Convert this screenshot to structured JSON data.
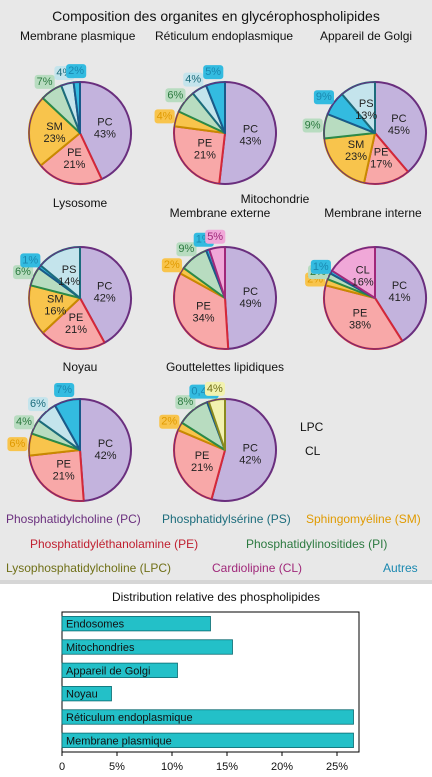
{
  "top_title": "Composition des organites en glycérophospholipides",
  "colors": {
    "PC": "#c3b3dd",
    "PE": "#f8a8a8",
    "SM": "#f8c44c",
    "PI": "#b8dcc0",
    "PS": "#c4e4ec",
    "LPC": "#f2f2b0",
    "CL": "#f0a8d8",
    "Autres": "#33bbe0"
  },
  "border_colors": {
    "PC": "#6a2f7e",
    "PE": "#d42838",
    "SM": "#c88a00",
    "PI": "#2c8a48",
    "PS": "#1c6c7c",
    "LPC": "#8a8a1e",
    "CL": "#a0287a",
    "Autres": "#1a5a8a"
  },
  "legend": [
    {
      "key": "PC",
      "label": "Phosphatidylcholine (PC)"
    },
    {
      "key": "PS",
      "label": "Phosphatidylsérine (PS)"
    },
    {
      "key": "SM",
      "label": "Sphingomyéline (SM)"
    },
    {
      "key": "PE",
      "label": "Phosphatidyléthanolamine (PE)"
    },
    {
      "key": "PI",
      "label": "Phosphatidylinositides (PI)"
    },
    {
      "key": "LPC",
      "label": "Lysophosphatidylcholine (LPC)"
    },
    {
      "key": "CL",
      "label": "Cardiolipine (CL)"
    },
    {
      "key": "Autres",
      "label": "Autres"
    }
  ],
  "side_labels": {
    "lpc": "LPC",
    "cl": "CL",
    "mito_group": "Mitochondrie"
  },
  "chart_data": [
    {
      "type": "pie",
      "title": "Membrane plasmique",
      "slices": [
        {
          "key": "PC",
          "value": 43,
          "label": "PC\n43%"
        },
        {
          "key": "PE",
          "value": 21,
          "label": "PE\n21%"
        },
        {
          "key": "SM",
          "value": 23,
          "label": "SM\n23%"
        },
        {
          "key": "PI",
          "value": 7,
          "label": "7%"
        },
        {
          "key": "PS",
          "value": 4,
          "label": "4%"
        },
        {
          "key": "Autres",
          "value": 2,
          "label": "2%"
        }
      ]
    },
    {
      "type": "pie",
      "title": "Réticulum endoplasmique",
      "slices": [
        {
          "key": "PC",
          "value": 43,
          "label": "PC\n43%"
        },
        {
          "key": "PE",
          "value": 21,
          "label": "PE\n21%"
        },
        {
          "key": "SM",
          "value": 4,
          "label": "4%"
        },
        {
          "key": "PI",
          "value": 6,
          "label": "6%"
        },
        {
          "key": "PS",
          "value": 4,
          "label": "4%"
        },
        {
          "key": "Autres",
          "value": 5,
          "label": "5%"
        }
      ]
    },
    {
      "type": "pie",
      "title": "Appareil de Golgi",
      "slices": [
        {
          "key": "PC",
          "value": 45,
          "label": "PC\n45%"
        },
        {
          "key": "PE",
          "value": 17,
          "label": "PE\n17%"
        },
        {
          "key": "SM",
          "value": 23,
          "label": "SM\n23%"
        },
        {
          "key": "PI",
          "value": 9,
          "label": "9%"
        },
        {
          "key": "Autres",
          "value": 9,
          "label": "9%"
        },
        {
          "key": "PS",
          "value": 13,
          "label": "PS\n13%"
        }
      ]
    },
    {
      "type": "pie",
      "title": "Lysosome",
      "slices": [
        {
          "key": "PC",
          "value": 42,
          "label": "PC\n42%"
        },
        {
          "key": "PE",
          "value": 21,
          "label": "PE\n21%"
        },
        {
          "key": "SM",
          "value": 16,
          "label": "SM\n16%"
        },
        {
          "key": "PI",
          "value": 6,
          "label": "6%"
        },
        {
          "key": "Autres",
          "value": 1,
          "label": "1%"
        },
        {
          "key": "PS",
          "value": 14,
          "label": "PS\n14%"
        }
      ]
    },
    {
      "type": "pie",
      "title": "Membrane externe",
      "slices": [
        {
          "key": "PC",
          "value": 49,
          "label": "PC\n49%"
        },
        {
          "key": "PE",
          "value": 34,
          "label": "PE\n34%"
        },
        {
          "key": "SM",
          "value": 2,
          "label": "2%"
        },
        {
          "key": "PI",
          "value": 9,
          "label": "9%"
        },
        {
          "key": "Autres",
          "value": 1,
          "label": "1%"
        },
        {
          "key": "CL",
          "value": 5,
          "label": "5%"
        }
      ]
    },
    {
      "type": "pie",
      "title": "Membrane interne",
      "slices": [
        {
          "key": "PC",
          "value": 41,
          "label": "PC\n41%"
        },
        {
          "key": "PE",
          "value": 38,
          "label": "PE\n38%"
        },
        {
          "key": "SM",
          "value": 2,
          "label": "2%"
        },
        {
          "key": "PI",
          "value": 2,
          "label": "2%"
        },
        {
          "key": "Autres",
          "value": 1,
          "label": "1%"
        },
        {
          "key": "CL",
          "value": 16,
          "label": "CL\n16%"
        }
      ]
    },
    {
      "type": "pie",
      "title": "Noyau",
      "slices": [
        {
          "key": "PC",
          "value": 42,
          "label": "PC\n42%"
        },
        {
          "key": "PE",
          "value": 21,
          "label": "PE\n21%"
        },
        {
          "key": "SM",
          "value": 6,
          "label": "6%"
        },
        {
          "key": "PI",
          "value": 4,
          "label": "4%"
        },
        {
          "key": "PS",
          "value": 6,
          "label": "6%"
        },
        {
          "key": "Autres",
          "value": 7,
          "label": "7%"
        }
      ]
    },
    {
      "type": "pie",
      "title": "Gouttelettes lipidiques",
      "slices": [
        {
          "key": "PC",
          "value": 42,
          "label": "PC\n42%"
        },
        {
          "key": "PE",
          "value": 21,
          "label": "PE\n21%"
        },
        {
          "key": "SM",
          "value": 2,
          "label": "2%"
        },
        {
          "key": "PI",
          "value": 8,
          "label": "8%"
        },
        {
          "key": "Autres",
          "value": 0.4,
          "label": "0,4%"
        },
        {
          "key": "LPC",
          "value": 4,
          "label": "4%"
        }
      ]
    },
    {
      "type": "bar",
      "orientation": "horizontal",
      "title": "Distribution relative des phospholipides",
      "categories": [
        "Endosomes",
        "Mitochondries",
        "Appareil de Golgi",
        "Noyau",
        "Réticulum endoplasmique",
        "Membrane plasmique"
      ],
      "values": [
        13.5,
        15.5,
        10.5,
        4.5,
        26.5,
        26.5
      ],
      "xlim": [
        0,
        27
      ],
      "ticks": [
        0,
        5,
        10,
        15,
        20,
        25
      ],
      "tick_labels": [
        "0",
        "5%",
        "10%",
        "15%",
        "20%",
        "25%"
      ],
      "bar_color": "#23c0c8"
    }
  ]
}
